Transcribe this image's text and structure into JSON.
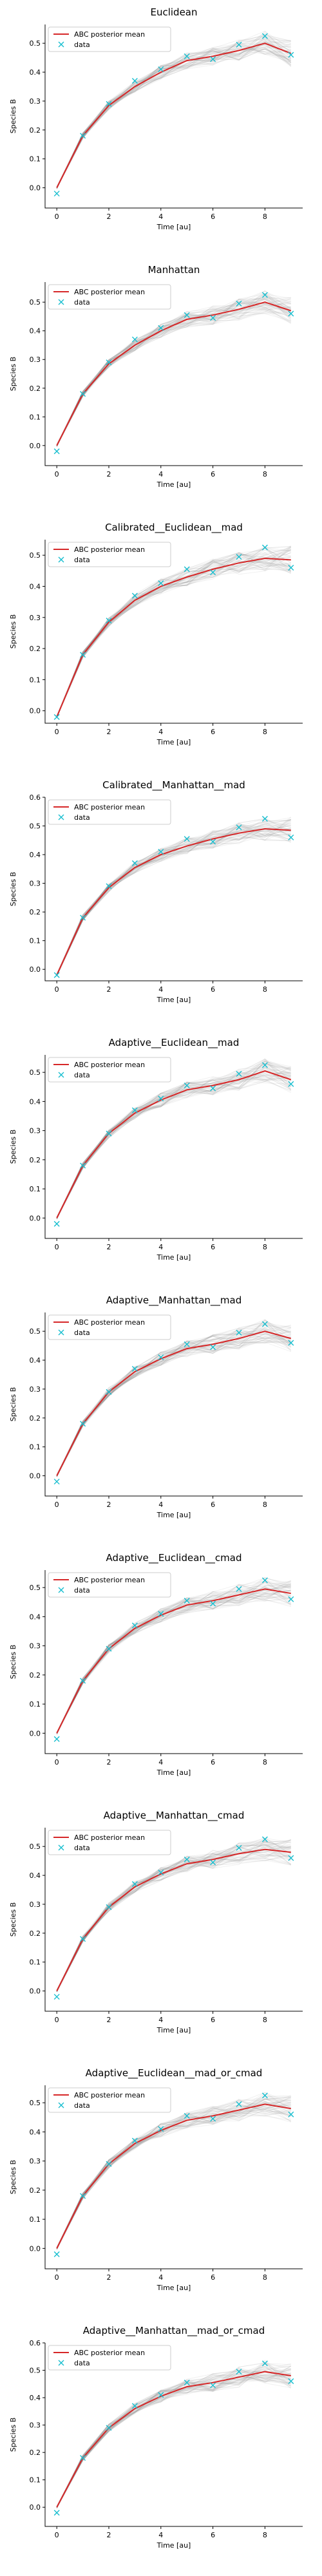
{
  "chart_data": [
    {
      "type": "line",
      "title": "Euclidean",
      "xlabel": "Time [au]",
      "ylabel": "Species B",
      "xlim": [
        -0.45,
        9.45
      ],
      "ylim": [
        -0.07,
        0.565
      ],
      "xticks": [
        0,
        2,
        4,
        6,
        8
      ],
      "yticks": [
        0.0,
        0.1,
        0.2,
        0.3,
        0.4,
        0.5
      ],
      "legend": "upper-left",
      "grid": false,
      "series": [
        {
          "name": "ABC posterior mean",
          "color": "#d62728",
          "x": [
            0,
            1,
            2,
            3,
            4,
            5,
            6,
            7,
            8,
            9
          ],
          "y": [
            0.0,
            0.18,
            0.285,
            0.35,
            0.4,
            0.44,
            0.455,
            0.475,
            0.5,
            0.465
          ]
        },
        {
          "name": "data",
          "color": "#17becf",
          "marker": "x",
          "x": [
            0,
            1,
            2,
            3,
            4,
            5,
            6,
            7,
            8,
            9
          ],
          "y": [
            -0.02,
            0.18,
            0.29,
            0.37,
            0.41,
            0.455,
            0.445,
            0.495,
            0.525,
            0.46
          ]
        }
      ]
    },
    {
      "type": "line",
      "title": "Manhattan",
      "xlabel": "Time [au]",
      "ylabel": "Species B",
      "xlim": [
        -0.45,
        9.45
      ],
      "ylim": [
        -0.07,
        0.57
      ],
      "xticks": [
        0,
        2,
        4,
        6,
        8
      ],
      "yticks": [
        0.0,
        0.1,
        0.2,
        0.3,
        0.4,
        0.5
      ],
      "legend": "upper-left",
      "grid": false,
      "series": [
        {
          "name": "ABC posterior mean",
          "color": "#d62728",
          "x": [
            0,
            1,
            2,
            3,
            4,
            5,
            6,
            7,
            8,
            9
          ],
          "y": [
            0.0,
            0.18,
            0.285,
            0.35,
            0.4,
            0.44,
            0.455,
            0.475,
            0.5,
            0.47
          ]
        },
        {
          "name": "data",
          "color": "#17becf",
          "marker": "x",
          "x": [
            0,
            1,
            2,
            3,
            4,
            5,
            6,
            7,
            8,
            9
          ],
          "y": [
            -0.02,
            0.18,
            0.29,
            0.37,
            0.41,
            0.455,
            0.445,
            0.495,
            0.525,
            0.46
          ]
        }
      ]
    },
    {
      "type": "line",
      "title": "Calibrated__Euclidean__mad",
      "xlabel": "Time [au]",
      "ylabel": "Species B",
      "xlim": [
        -0.45,
        9.45
      ],
      "ylim": [
        -0.04,
        0.55
      ],
      "xticks": [
        0,
        2,
        4,
        6,
        8
      ],
      "yticks": [
        0.0,
        0.1,
        0.2,
        0.3,
        0.4,
        0.5
      ],
      "legend": "upper-left",
      "grid": false,
      "series": [
        {
          "name": "ABC posterior mean",
          "color": "#d62728",
          "x": [
            0,
            1,
            2,
            3,
            4,
            5,
            6,
            7,
            8,
            9
          ],
          "y": [
            -0.02,
            0.18,
            0.285,
            0.355,
            0.4,
            0.43,
            0.455,
            0.475,
            0.49,
            0.485
          ]
        },
        {
          "name": "data",
          "color": "#17becf",
          "marker": "x",
          "x": [
            0,
            1,
            2,
            3,
            4,
            5,
            6,
            7,
            8,
            9
          ],
          "y": [
            -0.02,
            0.18,
            0.29,
            0.37,
            0.41,
            0.455,
            0.445,
            0.495,
            0.525,
            0.46
          ]
        }
      ]
    },
    {
      "type": "line",
      "title": "Calibrated__Manhattan__mad",
      "xlabel": "Time [au]",
      "ylabel": "Species B",
      "xlim": [
        -0.45,
        9.45
      ],
      "ylim": [
        -0.04,
        0.6
      ],
      "xticks": [
        0,
        2,
        4,
        6,
        8
      ],
      "yticks": [
        0.0,
        0.1,
        0.2,
        0.3,
        0.4,
        0.5,
        0.6
      ],
      "legend": "upper-left",
      "grid": false,
      "series": [
        {
          "name": "ABC posterior mean",
          "color": "#d62728",
          "x": [
            0,
            1,
            2,
            3,
            4,
            5,
            6,
            7,
            8,
            9
          ],
          "y": [
            -0.02,
            0.18,
            0.285,
            0.355,
            0.4,
            0.43,
            0.455,
            0.475,
            0.49,
            0.485
          ]
        },
        {
          "name": "data",
          "color": "#17becf",
          "marker": "x",
          "x": [
            0,
            1,
            2,
            3,
            4,
            5,
            6,
            7,
            8,
            9
          ],
          "y": [
            -0.02,
            0.18,
            0.29,
            0.37,
            0.41,
            0.455,
            0.445,
            0.495,
            0.525,
            0.46
          ]
        }
      ]
    },
    {
      "type": "line",
      "title": "Adaptive__Euclidean__mad",
      "xlabel": "Time [au]",
      "ylabel": "Species B",
      "xlim": [
        -0.45,
        9.45
      ],
      "ylim": [
        -0.07,
        0.56
      ],
      "xticks": [
        0,
        2,
        4,
        6,
        8
      ],
      "yticks": [
        0.0,
        0.1,
        0.2,
        0.3,
        0.4,
        0.5
      ],
      "legend": "upper-left",
      "grid": false,
      "series": [
        {
          "name": "ABC posterior mean",
          "color": "#d62728",
          "x": [
            0,
            1,
            2,
            3,
            4,
            5,
            6,
            7,
            8,
            9
          ],
          "y": [
            0.0,
            0.18,
            0.29,
            0.36,
            0.405,
            0.44,
            0.455,
            0.475,
            0.505,
            0.475
          ]
        },
        {
          "name": "data",
          "color": "#17becf",
          "marker": "x",
          "x": [
            0,
            1,
            2,
            3,
            4,
            5,
            6,
            7,
            8,
            9
          ],
          "y": [
            -0.02,
            0.18,
            0.29,
            0.37,
            0.41,
            0.455,
            0.445,
            0.495,
            0.525,
            0.46
          ]
        }
      ]
    },
    {
      "type": "line",
      "title": "Adaptive__Manhattan__mad",
      "xlabel": "Time [au]",
      "ylabel": "Species B",
      "xlim": [
        -0.45,
        9.45
      ],
      "ylim": [
        -0.07,
        0.565
      ],
      "xticks": [
        0,
        2,
        4,
        6,
        8
      ],
      "yticks": [
        0.0,
        0.1,
        0.2,
        0.3,
        0.4,
        0.5
      ],
      "legend": "upper-left",
      "grid": false,
      "series": [
        {
          "name": "ABC posterior mean",
          "color": "#d62728",
          "x": [
            0,
            1,
            2,
            3,
            4,
            5,
            6,
            7,
            8,
            9
          ],
          "y": [
            0.0,
            0.18,
            0.29,
            0.36,
            0.405,
            0.44,
            0.455,
            0.475,
            0.5,
            0.475
          ]
        },
        {
          "name": "data",
          "color": "#17becf",
          "marker": "x",
          "x": [
            0,
            1,
            2,
            3,
            4,
            5,
            6,
            7,
            8,
            9
          ],
          "y": [
            -0.02,
            0.18,
            0.29,
            0.37,
            0.41,
            0.455,
            0.445,
            0.495,
            0.525,
            0.46
          ]
        }
      ]
    },
    {
      "type": "line",
      "title": "Adaptive__Euclidean__cmad",
      "xlabel": "Time [au]",
      "ylabel": "Species B",
      "xlim": [
        -0.45,
        9.45
      ],
      "ylim": [
        -0.07,
        0.56
      ],
      "xticks": [
        0,
        2,
        4,
        6,
        8
      ],
      "yticks": [
        0.0,
        0.1,
        0.2,
        0.3,
        0.4,
        0.5
      ],
      "legend": "upper-left",
      "grid": false,
      "series": [
        {
          "name": "ABC posterior mean",
          "color": "#d62728",
          "x": [
            0,
            1,
            2,
            3,
            4,
            5,
            6,
            7,
            8,
            9
          ],
          "y": [
            0.0,
            0.18,
            0.29,
            0.36,
            0.405,
            0.44,
            0.455,
            0.475,
            0.495,
            0.48
          ]
        },
        {
          "name": "data",
          "color": "#17becf",
          "marker": "x",
          "x": [
            0,
            1,
            2,
            3,
            4,
            5,
            6,
            7,
            8,
            9
          ],
          "y": [
            -0.02,
            0.18,
            0.29,
            0.37,
            0.41,
            0.455,
            0.445,
            0.495,
            0.525,
            0.46
          ]
        }
      ]
    },
    {
      "type": "line",
      "title": "Adaptive__Manhattan__cmad",
      "xlabel": "Time [au]",
      "ylabel": "Species B",
      "xlim": [
        -0.45,
        9.45
      ],
      "ylim": [
        -0.07,
        0.565
      ],
      "xticks": [
        0,
        2,
        4,
        6,
        8
      ],
      "yticks": [
        0.0,
        0.1,
        0.2,
        0.3,
        0.4,
        0.5
      ],
      "legend": "upper-left",
      "grid": false,
      "series": [
        {
          "name": "ABC posterior mean",
          "color": "#d62728",
          "x": [
            0,
            1,
            2,
            3,
            4,
            5,
            6,
            7,
            8,
            9
          ],
          "y": [
            0.0,
            0.18,
            0.29,
            0.36,
            0.405,
            0.44,
            0.455,
            0.475,
            0.49,
            0.48
          ]
        },
        {
          "name": "data",
          "color": "#17becf",
          "marker": "x",
          "x": [
            0,
            1,
            2,
            3,
            4,
            5,
            6,
            7,
            8,
            9
          ],
          "y": [
            -0.02,
            0.18,
            0.29,
            0.37,
            0.41,
            0.455,
            0.445,
            0.495,
            0.525,
            0.46
          ]
        }
      ]
    },
    {
      "type": "line",
      "title": "Adaptive__Euclidean__mad_or_cmad",
      "xlabel": "Time [au]",
      "ylabel": "Species B",
      "xlim": [
        -0.45,
        9.45
      ],
      "ylim": [
        -0.07,
        0.56
      ],
      "xticks": [
        0,
        2,
        4,
        6,
        8
      ],
      "yticks": [
        0.0,
        0.1,
        0.2,
        0.3,
        0.4,
        0.5
      ],
      "legend": "upper-left",
      "grid": false,
      "series": [
        {
          "name": "ABC posterior mean",
          "color": "#d62728",
          "x": [
            0,
            1,
            2,
            3,
            4,
            5,
            6,
            7,
            8,
            9
          ],
          "y": [
            0.0,
            0.18,
            0.29,
            0.36,
            0.405,
            0.44,
            0.455,
            0.475,
            0.495,
            0.48
          ]
        },
        {
          "name": "data",
          "color": "#17becf",
          "marker": "x",
          "x": [
            0,
            1,
            2,
            3,
            4,
            5,
            6,
            7,
            8,
            9
          ],
          "y": [
            -0.02,
            0.18,
            0.29,
            0.37,
            0.41,
            0.455,
            0.445,
            0.495,
            0.525,
            0.46
          ]
        }
      ]
    },
    {
      "type": "line",
      "title": "Adaptive__Manhattan__mad_or_cmad",
      "xlabel": "Time [au]",
      "ylabel": "Species B",
      "xlim": [
        -0.45,
        9.45
      ],
      "ylim": [
        -0.07,
        0.6
      ],
      "xticks": [
        0,
        2,
        4,
        6,
        8
      ],
      "yticks": [
        0.0,
        0.1,
        0.2,
        0.3,
        0.4,
        0.5,
        0.6
      ],
      "legend": "upper-left",
      "grid": false,
      "series": [
        {
          "name": "ABC posterior mean",
          "color": "#d62728",
          "x": [
            0,
            1,
            2,
            3,
            4,
            5,
            6,
            7,
            8,
            9
          ],
          "y": [
            0.0,
            0.18,
            0.29,
            0.36,
            0.405,
            0.44,
            0.455,
            0.475,
            0.495,
            0.48
          ]
        },
        {
          "name": "data",
          "color": "#17becf",
          "marker": "x",
          "x": [
            0,
            1,
            2,
            3,
            4,
            5,
            6,
            7,
            8,
            9
          ],
          "y": [
            -0.02,
            0.18,
            0.29,
            0.37,
            0.41,
            0.455,
            0.445,
            0.495,
            0.525,
            0.46
          ]
        }
      ]
    }
  ]
}
